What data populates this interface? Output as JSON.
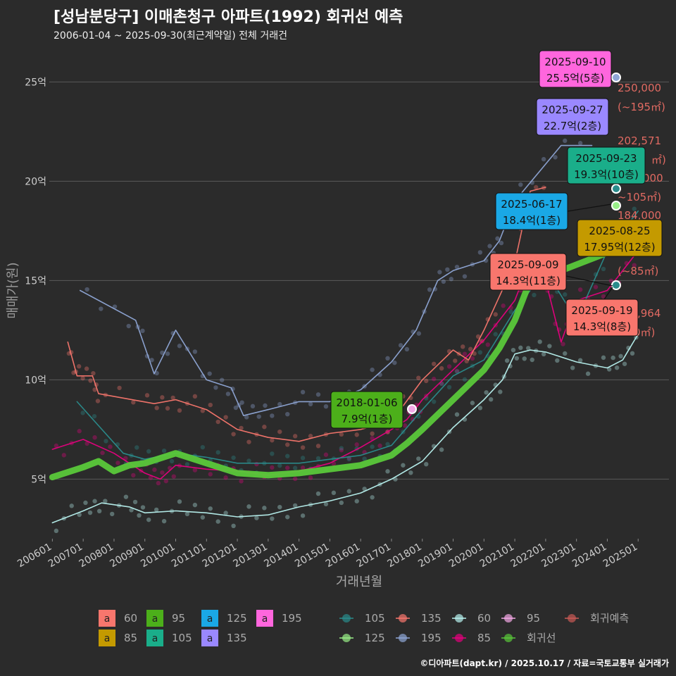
{
  "header": {
    "title": "[성남분당구] 이매촌청구 아파트(1992) 회귀선 예측",
    "subtitle": "2006-01-04 ~ 2025-09-30(최근계약일) 전체 거래건"
  },
  "credit": "©디아파트(dapt.kr) / 2025.10.17 / 자료=국토교통부 실거래가",
  "colors": {
    "background": "#2b2b2b",
    "grid": "#555555",
    "60": "#f8766d",
    "85": "#e6007e",
    "95": "#f3a8e6",
    "105": "#2a8c8c",
    "125": "#99ee88",
    "135": "#f8766d",
    "195": "#8fa6d6",
    "60line": "#b8f2ef",
    "regression": "#5ac83a"
  },
  "chart_data": {
    "type": "line",
    "xlabel": "거래년월",
    "ylabel": "매매가(원)",
    "x_ticks": [
      "200601",
      "200701",
      "200801",
      "200901",
      "201001",
      "201101",
      "201201",
      "201301",
      "201401",
      "201501",
      "201601",
      "201701",
      "201801",
      "201901",
      "202001",
      "202101",
      "202201",
      "202301",
      "202401",
      "202501"
    ],
    "y_ticks": [
      {
        "value": 5,
        "label": "5억"
      },
      {
        "value": 10,
        "label": "10억"
      },
      {
        "value": 15,
        "label": "15억"
      },
      {
        "value": 20,
        "label": "20억"
      },
      {
        "value": 25,
        "label": "25억"
      }
    ],
    "ylim": [
      2,
      27
    ],
    "xlim": [
      2005.9,
      2026.0
    ],
    "grid": true,
    "series": [
      {
        "name": "60",
        "color": "#b8f2ef",
        "points": [
          [
            2006.0,
            2.8
          ],
          [
            2007.0,
            3.4
          ],
          [
            2007.6,
            3.8
          ],
          [
            2008.5,
            3.6
          ],
          [
            2009.0,
            3.3
          ],
          [
            2010.0,
            3.4
          ],
          [
            2011.0,
            3.3
          ],
          [
            2012.0,
            3.1
          ],
          [
            2013.0,
            3.2
          ],
          [
            2014.0,
            3.6
          ],
          [
            2015.0,
            3.9
          ],
          [
            2016.0,
            4.3
          ],
          [
            2017.0,
            5.0
          ],
          [
            2018.0,
            5.9
          ],
          [
            2019.0,
            7.6
          ],
          [
            2020.0,
            9.0
          ],
          [
            2020.6,
            10.0
          ],
          [
            2021.0,
            11.3
          ],
          [
            2021.5,
            11.5
          ],
          [
            2022.0,
            11.4
          ],
          [
            2023.0,
            10.9
          ],
          [
            2024.0,
            10.6
          ],
          [
            2024.5,
            11.0
          ],
          [
            2025.0,
            12.3
          ]
        ]
      },
      {
        "name": "85",
        "color": "#e6007e",
        "points": [
          [
            2006.0,
            6.5
          ],
          [
            2007.0,
            7.0
          ],
          [
            2008.0,
            6.3
          ],
          [
            2009.0,
            5.3
          ],
          [
            2009.5,
            5.0
          ],
          [
            2010.0,
            5.7
          ],
          [
            2011.0,
            5.5
          ],
          [
            2012.0,
            5.4
          ],
          [
            2013.0,
            5.2
          ],
          [
            2014.0,
            5.4
          ],
          [
            2015.0,
            5.8
          ],
          [
            2016.0,
            6.6
          ],
          [
            2017.0,
            7.5
          ],
          [
            2017.5,
            8.0
          ],
          [
            2018.0,
            9.0
          ],
          [
            2019.0,
            10.5
          ],
          [
            2020.0,
            12.0
          ],
          [
            2021.0,
            14.0
          ],
          [
            2021.5,
            16.0
          ],
          [
            2022.0,
            15.0
          ],
          [
            2022.5,
            11.9
          ],
          [
            2023.0,
            14.0
          ],
          [
            2024.0,
            14.5
          ],
          [
            2025.0,
            16.5
          ]
        ]
      },
      {
        "name": "135",
        "color": "#f8766d",
        "points": [
          [
            2006.5,
            11.9
          ],
          [
            2006.8,
            10.2
          ],
          [
            2007.3,
            10.2
          ],
          [
            2007.5,
            9.3
          ],
          [
            2009.3,
            8.8
          ],
          [
            2010.0,
            9.0
          ],
          [
            2011.0,
            8.5
          ],
          [
            2012.0,
            7.5
          ],
          [
            2013.0,
            7.1
          ],
          [
            2014.0,
            6.9
          ],
          [
            2015.0,
            7.3
          ],
          [
            2016.0,
            7.5
          ],
          [
            2017.0,
            7.9
          ],
          [
            2018.0,
            10.0
          ],
          [
            2019.0,
            11.5
          ],
          [
            2019.5,
            11.0
          ],
          [
            2020.0,
            12.5
          ],
          [
            2021.0,
            15.9
          ],
          [
            2021.5,
            19.5
          ],
          [
            2022.0,
            19.7
          ]
        ]
      },
      {
        "name": "195",
        "color": "#8fa6d6",
        "points": [
          [
            2006.9,
            14.5
          ],
          [
            2008.7,
            13.0
          ],
          [
            2009.3,
            10.3
          ],
          [
            2010.0,
            12.5
          ],
          [
            2011.0,
            10.0
          ],
          [
            2011.8,
            9.6
          ],
          [
            2012.2,
            8.2
          ],
          [
            2013.0,
            8.5
          ],
          [
            2014.0,
            8.9
          ],
          [
            2015.0,
            8.9
          ],
          [
            2016.0,
            9.5
          ],
          [
            2017.0,
            10.9
          ],
          [
            2017.8,
            12.5
          ],
          [
            2018.5,
            15.0
          ],
          [
            2019.0,
            15.5
          ],
          [
            2020.0,
            16.0
          ],
          [
            2020.5,
            17.0
          ],
          [
            2021.0,
            19.0
          ],
          [
            2022.5,
            21.8
          ],
          [
            2023.5,
            21.8
          ]
        ]
      },
      {
        "name": "105",
        "color": "#2a8c8c",
        "points": [
          [
            2006.8,
            8.9
          ],
          [
            2008.3,
            6.3
          ],
          [
            2009.0,
            6.0
          ],
          [
            2010.0,
            6.3
          ],
          [
            2011.0,
            6.1
          ],
          [
            2012.0,
            5.8
          ],
          [
            2013.0,
            5.8
          ],
          [
            2014.0,
            5.8
          ],
          [
            2015.0,
            6.0
          ],
          [
            2016.0,
            6.2
          ],
          [
            2017.0,
            6.7
          ],
          [
            2018.0,
            8.5
          ],
          [
            2019.0,
            10.2
          ],
          [
            2020.0,
            11.0
          ],
          [
            2021.0,
            13.5
          ],
          [
            2022.0,
            15.5
          ],
          [
            2023.0,
            13.0
          ],
          [
            2024.0,
            16.5
          ],
          [
            2025.0,
            18.5
          ]
        ]
      },
      {
        "name": "회귀선",
        "color": "#5ac83a",
        "points": [
          [
            2006.0,
            5.1
          ],
          [
            2007.0,
            5.6
          ],
          [
            2007.5,
            5.9
          ],
          [
            2008.0,
            5.4
          ],
          [
            2008.5,
            5.7
          ],
          [
            2009.0,
            5.8
          ],
          [
            2010.0,
            6.3
          ],
          [
            2011.0,
            5.8
          ],
          [
            2012.0,
            5.3
          ],
          [
            2013.0,
            5.2
          ],
          [
            2014.0,
            5.3
          ],
          [
            2015.0,
            5.5
          ],
          [
            2016.0,
            5.7
          ],
          [
            2017.0,
            6.2
          ],
          [
            2017.5,
            6.8
          ],
          [
            2018.0,
            7.5
          ],
          [
            2019.0,
            9.0
          ],
          [
            2020.0,
            10.5
          ],
          [
            2020.5,
            11.6
          ],
          [
            2021.0,
            13.0
          ],
          [
            2021.5,
            15.0
          ],
          [
            2022.0,
            15.2
          ],
          [
            2023.0,
            15.8
          ],
          [
            2024.0,
            16.4
          ],
          [
            2025.0,
            17.5
          ]
        ]
      }
    ],
    "highlights": [
      {
        "date": "2025-09-10",
        "price": "25.5억(5층)",
        "value": 25.5,
        "color": "#ff66dd"
      },
      {
        "date": "2025-09-27",
        "price": "22.7억(2층)",
        "value": 22.7,
        "color": "#9a88ff"
      },
      {
        "date": "2025-09-23",
        "price": "19.3억(10층)",
        "value": 19.3,
        "color": "#1aae8a"
      },
      {
        "date": "2025-06-17",
        "price": "18.4억(1층)",
        "value": 18.4,
        "color": "#1aa8e6"
      },
      {
        "date": "2025-08-25",
        "price": "17.95억(12층)",
        "value": 17.95,
        "color": "#c49a00"
      },
      {
        "date": "2025-09-09",
        "price": "14.3억(11층)",
        "value": 14.3,
        "color": "#f8766d"
      },
      {
        "date": "2025-09-19",
        "price": "14.3억(8층)",
        "value": 14.3,
        "color": "#f8766d"
      },
      {
        "date": "2018-01-06",
        "price": "7.9억(1층)",
        "value": 7.9,
        "color": "#4caf1a"
      }
    ],
    "prediction_labels": [
      "250,000",
      "(~195㎡)",
      "202,571",
      "㎡)",
      "000",
      "~105㎡)",
      "184,000",
      "(~85㎡)",
      ",964",
      "0㎡)"
    ]
  },
  "legend": {
    "fill_items": [
      {
        "key": "a",
        "label": "60",
        "color": "#f8766d"
      },
      {
        "key": "a",
        "label": "95",
        "color": "#4caf1a"
      },
      {
        "key": "a",
        "label": "125",
        "color": "#1aa8e6"
      },
      {
        "key": "a",
        "label": "195",
        "color": "#ff66dd"
      },
      {
        "key": "a",
        "label": "85",
        "color": "#c49a00"
      },
      {
        "key": "a",
        "label": "105",
        "color": "#1aae8a"
      },
      {
        "key": "a",
        "label": "135",
        "color": "#9a88ff"
      }
    ],
    "line_items": [
      {
        "label": "105",
        "color": "#2a8c8c"
      },
      {
        "label": "135",
        "color": "#f8766d"
      },
      {
        "label": "60",
        "color": "#b8f2ef"
      },
      {
        "label": "95",
        "color": "#f3a8e6"
      },
      {
        "label": "회귀예측",
        "color": "#c95a55"
      },
      {
        "label": "125",
        "color": "#99ee88"
      },
      {
        "label": "195",
        "color": "#8fa6d6"
      },
      {
        "label": "85",
        "color": "#e6007e"
      },
      {
        "label": "회귀선",
        "color": "#5ac83a"
      }
    ]
  }
}
